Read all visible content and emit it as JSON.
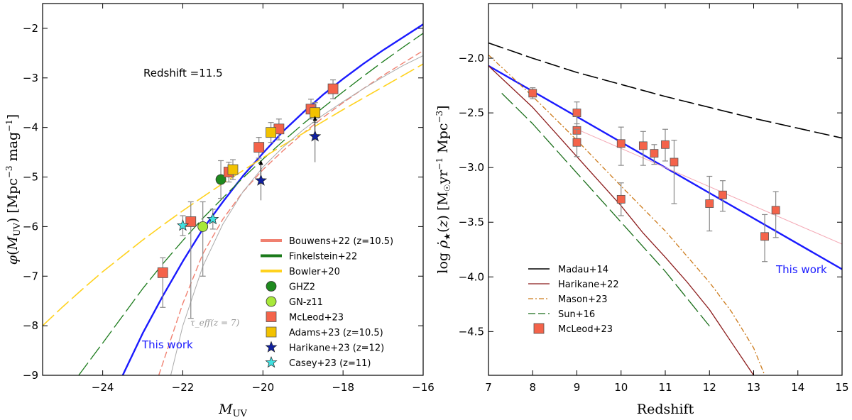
{
  "chart_data": [
    {
      "type": "line",
      "panel": "left",
      "xlabel": "M_UV",
      "ylabel": "φ(M_UV) [Mpc^-3 mag^-1]",
      "xlim": [
        -25.5,
        -16
      ],
      "ylim": [
        -9,
        -1.5
      ],
      "xticks": [
        -24,
        -22,
        -20,
        -18,
        -16
      ],
      "yticks": [
        -9,
        -8,
        -7,
        -6,
        -5,
        -4,
        -3,
        -2
      ],
      "xtick_labels": [
        "−24",
        "−22",
        "−20",
        "−18",
        "−16"
      ],
      "ytick_labels": [
        "−9",
        "−8",
        "−7",
        "−6",
        "−5",
        "−4",
        "−3",
        "−2"
      ],
      "annotations": {
        "redshift": "Redshift =11.5",
        "this_work": "This work",
        "teff": "τ_eff(z = 7)"
      },
      "colors": {
        "this_work": "#1a1aff",
        "bouwens": "#f08070",
        "finkelstein": "#1a7a1a",
        "bowler": "#ffd21e",
        "teff": "#aaaaaa",
        "mcleod": "#f4634a",
        "adams": "#f2c200",
        "ghz2": "#1e8a1e",
        "gnz11": "#a8e83a",
        "harikane": "#1020a0",
        "casey": "#40e0e0"
      },
      "series": [
        {
          "name": "This work",
          "style": "solid",
          "x": [
            -23.5,
            -23,
            -22.5,
            -22,
            -21.5,
            -21,
            -20.5,
            -20,
            -19.5,
            -19,
            -18.5,
            -18,
            -17.5,
            -17,
            -16.5,
            -16
          ],
          "y": [
            -9.0,
            -8.15,
            -7.4,
            -6.7,
            -6.05,
            -5.5,
            -4.98,
            -4.52,
            -4.08,
            -3.7,
            -3.34,
            -3.02,
            -2.72,
            -2.44,
            -2.18,
            -1.92
          ]
        },
        {
          "name": "Bouwens+22 (z=10.5)",
          "legend": true,
          "style": "dash",
          "x": [
            -22.6,
            -22,
            -21.5,
            -21,
            -20.5,
            -20,
            -19.5,
            -19,
            -18.5,
            -18,
            -17.5,
            -17,
            -16.5,
            -16
          ],
          "y": [
            -9.0,
            -7.55,
            -6.55,
            -5.85,
            -5.3,
            -4.85,
            -4.47,
            -4.12,
            -3.8,
            -3.5,
            -3.22,
            -2.95,
            -2.7,
            -2.45
          ]
        },
        {
          "name": "Finkelstein+22",
          "legend": true,
          "style": "longdash",
          "x": [
            -24.6,
            -24,
            -23.5,
            -23,
            -22.5,
            -22,
            -21.5,
            -21,
            -20.5,
            -20,
            -19.5,
            -19,
            -18.5,
            -18,
            -17.5,
            -17,
            -16.5,
            -16
          ],
          "y": [
            -9.0,
            -8.35,
            -7.8,
            -7.25,
            -6.75,
            -6.28,
            -5.83,
            -5.42,
            -5.02,
            -4.64,
            -4.28,
            -3.93,
            -3.6,
            -3.28,
            -2.97,
            -2.67,
            -2.38,
            -2.1
          ]
        },
        {
          "name": "Bowler+20",
          "legend": true,
          "style": "longdash",
          "x": [
            -25.5,
            -25,
            -24.5,
            -24,
            -23.5,
            -23,
            -22.5,
            -22,
            -21.5,
            -21,
            -20.5,
            -20,
            -19.5,
            -19,
            -18.5,
            -18,
            -17.5,
            -17,
            -16.5,
            -16
          ],
          "y": [
            -8.0,
            -7.62,
            -7.26,
            -6.91,
            -6.59,
            -6.27,
            -5.97,
            -5.68,
            -5.4,
            -5.13,
            -4.87,
            -4.61,
            -4.36,
            -4.12,
            -3.88,
            -3.64,
            -3.41,
            -3.18,
            -2.95,
            -2.72
          ]
        },
        {
          "name": "τ_eff(z=7)",
          "style": "thin",
          "x": [
            -22.3,
            -22,
            -21.5,
            -21,
            -20.5,
            -20,
            -19.5,
            -19,
            -18.5,
            -18,
            -17.5,
            -17,
            -16.5,
            -16
          ],
          "y": [
            -9.0,
            -8.0,
            -6.8,
            -5.95,
            -5.3,
            -4.8,
            -4.4,
            -4.05,
            -3.75,
            -3.48,
            -3.22,
            -2.98,
            -2.75,
            -2.55
          ]
        }
      ],
      "points": [
        {
          "name": "GHZ2",
          "legend": true,
          "marker": "circle",
          "x": [
            -21.05
          ],
          "y": [
            -5.05
          ],
          "yerr": [
            [
              0.38
            ],
            [
              0.38
            ]
          ]
        },
        {
          "name": "GN-z11",
          "legend": true,
          "marker": "circle",
          "x": [
            -21.5
          ],
          "y": [
            -6.0
          ],
          "yerr": [
            [
              1.0
            ],
            [
              0.5
            ]
          ]
        },
        {
          "name": "McLeod+23",
          "legend": true,
          "marker": "square",
          "x": [
            -22.5,
            -21.8,
            -20.85,
            -20.1,
            -19.6,
            -18.8,
            -18.25
          ],
          "y": [
            -6.93,
            -5.9,
            -4.9,
            -4.4,
            -4.03,
            -3.63,
            -3.22
          ],
          "yerr": [
            [
              0.7,
              1.95,
              0.2,
              0.22,
              0.22,
              0.2,
              0.2
            ],
            [
              0.3,
              0.4,
              0.2,
              0.2,
              0.2,
              0.2,
              0.18
            ]
          ]
        },
        {
          "name": "Adams+23 (z=10.5)",
          "legend": true,
          "marker": "square",
          "x": [
            -20.75,
            -19.8,
            -18.7
          ],
          "y": [
            -4.85,
            -4.1,
            -3.7
          ],
          "yerr": [
            [
              0.2,
              0.2,
              0.2
            ],
            [
              0.2,
              0.2,
              0.2
            ]
          ]
        },
        {
          "name": "Harikane+23 (z=12)",
          "legend": true,
          "marker": "star",
          "x": [
            -20.05,
            -18.7
          ],
          "y": [
            -5.07,
            -4.18
          ],
          "yerr": [
            [
              0.4,
              0.52
            ],
            [
              0.0,
              0.0
            ]
          ],
          "lower_limit": true
        },
        {
          "name": "Casey+23 (z=11)",
          "legend": true,
          "marker": "star",
          "x": [
            -22.0,
            -21.25
          ],
          "y": [
            -5.98,
            -5.85
          ],
          "yerr": [
            [
              0.2,
              0.2
            ],
            [
              0.2,
              0.2
            ]
          ]
        }
      ]
    },
    {
      "type": "line",
      "panel": "right",
      "xlabel": "Redshift",
      "ylabel": "log ρ̇★(z) [M☉ yr^-1 Mpc^-3]",
      "xlim": [
        7,
        15
      ],
      "ylim": [
        -4.9,
        -1.5
      ],
      "xticks": [
        7,
        8,
        9,
        10,
        11,
        12,
        13,
        14,
        15
      ],
      "yticks": [
        -4.5,
        -4.0,
        -3.5,
        -3.0,
        -2.5,
        -2.0
      ],
      "xtick_labels": [
        "7",
        "8",
        "9",
        "10",
        "11",
        "12",
        "13",
        "14",
        "15"
      ],
      "ytick_labels": [
        "−4.5",
        "−4.0",
        "−3.5",
        "−3.0",
        "−2.5",
        "−2.0"
      ],
      "annotations": {
        "this_work": "This work"
      },
      "colors": {
        "this_work": "#1a1aff",
        "madau": "#000000",
        "harikane": "#8b1a1a",
        "mason": "#cc7a1a",
        "sun": "#1a6e1a",
        "mcleod": "#f4634a",
        "extra": "#f4a8b4"
      },
      "series": [
        {
          "name": "This work",
          "style": "solid",
          "x": [
            7,
            15
          ],
          "y": [
            -2.07,
            -3.93
          ]
        },
        {
          "name": "Madau+14",
          "legend": true,
          "style": "longdash",
          "x": [
            7,
            8,
            9,
            10,
            11,
            12,
            13,
            14,
            15
          ],
          "y": [
            -1.86,
            -2.0,
            -2.13,
            -2.24,
            -2.35,
            -2.45,
            -2.55,
            -2.64,
            -2.73
          ]
        },
        {
          "name": "Harikane+22",
          "legend": true,
          "style": "solid",
          "x": [
            7,
            8,
            9,
            10,
            10.5,
            11,
            11.5,
            12,
            12.5,
            13,
            13.05
          ],
          "y": [
            -2.07,
            -2.45,
            -2.9,
            -3.35,
            -3.6,
            -3.82,
            -4.05,
            -4.3,
            -4.6,
            -4.9,
            -4.95
          ]
        },
        {
          "name": "Mason+23",
          "legend": true,
          "style": "dashdot",
          "x": [
            7,
            8,
            9,
            10,
            11,
            12,
            12.5,
            13,
            13.3
          ],
          "y": [
            -1.97,
            -2.35,
            -2.75,
            -3.17,
            -3.58,
            -4.05,
            -4.32,
            -4.65,
            -4.95
          ]
        },
        {
          "name": "Sun+16",
          "legend": true,
          "style": "longdash",
          "x": [
            7.3,
            8,
            9,
            10,
            11,
            12
          ],
          "y": [
            -2.32,
            -2.6,
            -3.05,
            -3.5,
            -3.95,
            -4.45
          ]
        },
        {
          "name": "",
          "style": "thin",
          "x": [
            9.0,
            15.0
          ],
          "y": [
            -2.65,
            -3.7
          ]
        }
      ],
      "points": [
        {
          "name": "McLeod+23",
          "legend": true,
          "marker": "square",
          "x": [
            8.0,
            9.0,
            9.0,
            9.0,
            10.0,
            10.0,
            10.5,
            10.75,
            11.0,
            11.2,
            12.0,
            12.3,
            13.25,
            13.5
          ],
          "y": [
            -2.32,
            -2.5,
            -2.66,
            -2.77,
            -2.78,
            -3.29,
            -2.8,
            -2.87,
            -2.79,
            -2.95,
            -3.33,
            -3.25,
            -3.63,
            -3.39
          ],
          "yerr": [
            [
              0.05,
              0.1,
              0.13,
              0.13,
              0.2,
              0.15,
              0.18,
              0.1,
              0.15,
              0.38,
              0.25,
              0.15,
              0.23,
              0.25
            ],
            [
              0.05,
              0.1,
              0.13,
              0.12,
              0.15,
              0.15,
              0.13,
              0.08,
              0.14,
              0.2,
              0.25,
              0.13,
              0.2,
              0.17
            ]
          ]
        }
      ]
    }
  ]
}
